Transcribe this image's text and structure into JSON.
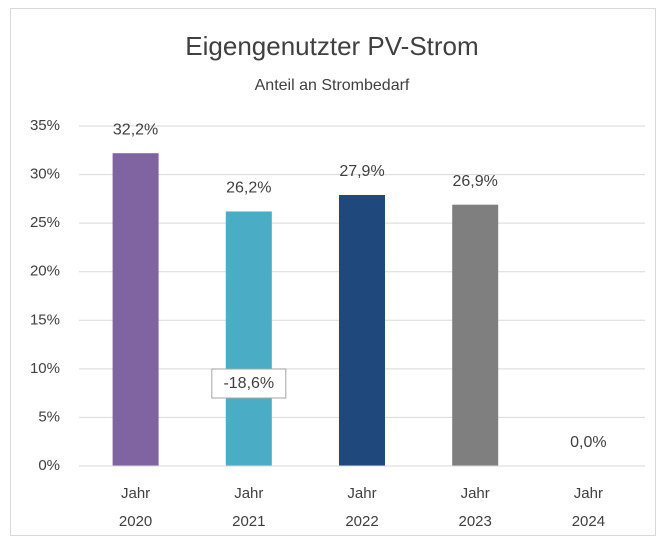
{
  "chart_data": {
    "type": "bar",
    "title": "Eigengenutzter PV-Strom",
    "subtitle": "Anteil an Strombedarf",
    "categories": [
      "Jahr 2020",
      "Jahr 2021",
      "Jahr 2022",
      "Jahr 2023",
      "Jahr 2024"
    ],
    "values": [
      32.2,
      26.2,
      27.9,
      26.9,
      0.0
    ],
    "value_labels": [
      "32,2%",
      "26,2%",
      "27,9%",
      "26,9%",
      "0,0%"
    ],
    "colors": [
      "#8064a2",
      "#4bacc6",
      "#1f497d",
      "#7f7f7f",
      "#7f7f7f"
    ],
    "ylim": [
      0,
      35
    ],
    "yticks": [
      {
        "value": 0,
        "label": "0%"
      },
      {
        "value": 5,
        "label": "5%"
      },
      {
        "value": 10,
        "label": "10%"
      },
      {
        "value": 15,
        "label": "15%"
      },
      {
        "value": 20,
        "label": "20%"
      },
      {
        "value": 25,
        "label": "25%"
      },
      {
        "value": 30,
        "label": "30%"
      },
      {
        "value": 35,
        "label": "35%"
      }
    ],
    "grid": true,
    "annotations": [
      "-18,6%"
    ]
  }
}
